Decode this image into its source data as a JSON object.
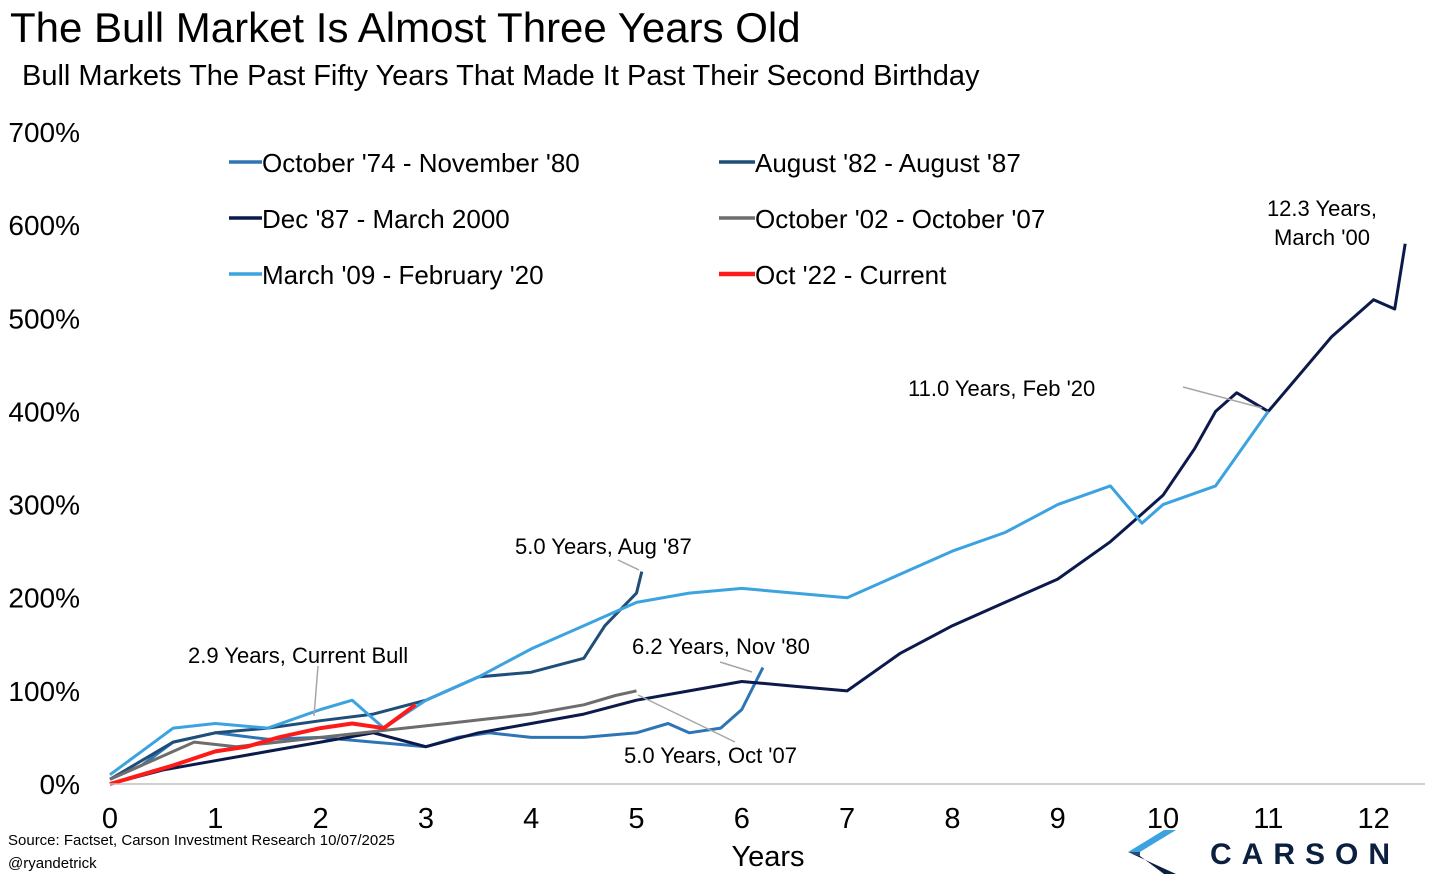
{
  "header": {
    "title": "The Bull Market Is Almost Three Years Old",
    "subtitle": "Bull Markets The Past Fifty Years That Made It Past Their Second Birthday"
  },
  "footer": {
    "source": "Source: Factset, Carson Investment Research 10/07/2025",
    "handle": "@ryandetrick",
    "logo_text": "CARSON"
  },
  "chart_data": {
    "type": "line",
    "xlabel": "Years",
    "ylabel": "",
    "xlim": [
      0,
      12.5
    ],
    "ylim": [
      0,
      700
    ],
    "x_ticks": [
      0,
      1,
      2,
      3,
      4,
      5,
      6,
      7,
      8,
      9,
      10,
      11,
      12
    ],
    "y_ticks": [
      0,
      100,
      200,
      300,
      400,
      500,
      600,
      700
    ],
    "y_tick_labels": [
      "0%",
      "100%",
      "200%",
      "300%",
      "400%",
      "500%",
      "600%",
      "700%"
    ],
    "grid": false,
    "legend_position": "top-left",
    "series": [
      {
        "name": "October '74 - November '80",
        "color": "#2e75b6",
        "points": [
          [
            0,
            5
          ],
          [
            0.3,
            20
          ],
          [
            0.6,
            45
          ],
          [
            1,
            55
          ],
          [
            1.5,
            48
          ],
          [
            2,
            50
          ],
          [
            2.5,
            45
          ],
          [
            3,
            40
          ],
          [
            3.3,
            50
          ],
          [
            3.6,
            55
          ],
          [
            4,
            50
          ],
          [
            4.5,
            50
          ],
          [
            5,
            55
          ],
          [
            5.3,
            65
          ],
          [
            5.5,
            55
          ],
          [
            5.8,
            60
          ],
          [
            6,
            80
          ],
          [
            6.2,
            125
          ]
        ]
      },
      {
        "name": "August '82 - August '87",
        "color": "#1f4e79",
        "points": [
          [
            0,
            5
          ],
          [
            0.3,
            25
          ],
          [
            0.6,
            45
          ],
          [
            1,
            55
          ],
          [
            1.5,
            60
          ],
          [
            2,
            68
          ],
          [
            2.5,
            75
          ],
          [
            3,
            90
          ],
          [
            3.5,
            115
          ],
          [
            4,
            120
          ],
          [
            4.5,
            135
          ],
          [
            4.7,
            170
          ],
          [
            5,
            205
          ],
          [
            5.05,
            228
          ]
        ]
      },
      {
        "name": "Dec '87 - March 2000",
        "color": "#0c1a4b",
        "points": [
          [
            0,
            0
          ],
          [
            0.5,
            15
          ],
          [
            1,
            25
          ],
          [
            1.5,
            35
          ],
          [
            2,
            45
          ],
          [
            2.5,
            55
          ],
          [
            3,
            40
          ],
          [
            3.5,
            55
          ],
          [
            4,
            65
          ],
          [
            4.5,
            75
          ],
          [
            5,
            90
          ],
          [
            5.5,
            100
          ],
          [
            6,
            110
          ],
          [
            6.5,
            105
          ],
          [
            7,
            100
          ],
          [
            7.5,
            140
          ],
          [
            8,
            170
          ],
          [
            8.5,
            195
          ],
          [
            9,
            220
          ],
          [
            9.5,
            260
          ],
          [
            10,
            310
          ],
          [
            10.3,
            360
          ],
          [
            10.5,
            400
          ],
          [
            10.7,
            420
          ],
          [
            11,
            400
          ],
          [
            11.3,
            440
          ],
          [
            11.6,
            480
          ],
          [
            12,
            520
          ],
          [
            12.2,
            510
          ],
          [
            12.3,
            580
          ]
        ]
      },
      {
        "name": "October '02 - October '07",
        "color": "#6d6d6d",
        "points": [
          [
            0,
            5
          ],
          [
            0.4,
            25
          ],
          [
            0.8,
            45
          ],
          [
            1.2,
            40
          ],
          [
            1.6,
            45
          ],
          [
            2,
            50
          ],
          [
            2.4,
            55
          ],
          [
            2.8,
            60
          ],
          [
            3.2,
            65
          ],
          [
            3.6,
            70
          ],
          [
            4,
            75
          ],
          [
            4.5,
            85
          ],
          [
            4.8,
            95
          ],
          [
            5,
            100
          ]
        ]
      },
      {
        "name": "March '09 - February '20",
        "color": "#3ca3e0",
        "points": [
          [
            0,
            10
          ],
          [
            0.3,
            35
          ],
          [
            0.6,
            60
          ],
          [
            1,
            65
          ],
          [
            1.5,
            60
          ],
          [
            2,
            80
          ],
          [
            2.3,
            90
          ],
          [
            2.6,
            60
          ],
          [
            3,
            90
          ],
          [
            3.5,
            115
          ],
          [
            4,
            145
          ],
          [
            4.5,
            170
          ],
          [
            5,
            195
          ],
          [
            5.5,
            205
          ],
          [
            6,
            210
          ],
          [
            6.5,
            205
          ],
          [
            7,
            200
          ],
          [
            7.5,
            225
          ],
          [
            8,
            250
          ],
          [
            8.5,
            270
          ],
          [
            9,
            300
          ],
          [
            9.5,
            320
          ],
          [
            9.8,
            280
          ],
          [
            10,
            300
          ],
          [
            10.5,
            320
          ],
          [
            11,
            400
          ]
        ]
      },
      {
        "name": "Oct '22 - Current",
        "color": "#ff1a1a",
        "points": [
          [
            0,
            0
          ],
          [
            0.3,
            10
          ],
          [
            0.6,
            20
          ],
          [
            1,
            35
          ],
          [
            1.3,
            40
          ],
          [
            1.6,
            50
          ],
          [
            2,
            60
          ],
          [
            2.3,
            65
          ],
          [
            2.6,
            60
          ],
          [
            2.9,
            85
          ]
        ]
      }
    ],
    "annotations": [
      {
        "text": "12.3 Years,",
        "line2": "March '00"
      },
      {
        "text": "11.0 Years,  Feb '20"
      },
      {
        "text": "5.0 Years, Aug '87"
      },
      {
        "text": "6.2 Years,  Nov '80"
      },
      {
        "text": "2.9 Years,  Current Bull"
      },
      {
        "text": "5.0 Years,  Oct '07"
      }
    ]
  }
}
